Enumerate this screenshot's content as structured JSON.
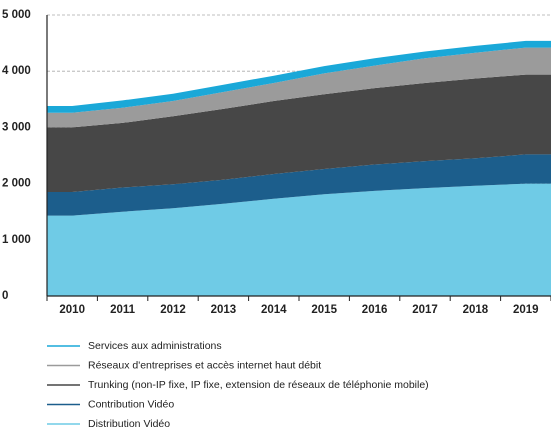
{
  "chart_data": {
    "type": "stacked_area",
    "categories": [
      "2010",
      "2011",
      "2012",
      "2013",
      "2014",
      "2015",
      "2016",
      "2017",
      "2018",
      "2019"
    ],
    "series": [
      {
        "name": "Distribution Vidéo",
        "color": "#6fcbe6",
        "values": [
          1430,
          1500,
          1560,
          1640,
          1730,
          1810,
          1870,
          1920,
          1960,
          2000
        ]
      },
      {
        "name": "Contribution Vidéo",
        "color": "#1c5e8c",
        "values": [
          420,
          430,
          430,
          430,
          440,
          450,
          470,
          480,
          490,
          520
        ]
      },
      {
        "name": "Trunking (non-IP fixe, IP fixe, extension de réseaux de téléphonie mobile)",
        "color": "#474747",
        "values": [
          1150,
          1150,
          1210,
          1260,
          1300,
          1330,
          1360,
          1390,
          1420,
          1420
        ]
      },
      {
        "name": "Réseaux d'entreprises et accès internet haut débit",
        "color": "#9b9b9b",
        "values": [
          260,
          270,
          270,
          300,
          320,
          370,
          400,
          440,
          460,
          480
        ]
      },
      {
        "name": "Services aux administrations",
        "color": "#1aa8d8",
        "values": [
          120,
          130,
          130,
          130,
          130,
          130,
          130,
          120,
          120,
          120
        ]
      }
    ],
    "ylim": [
      0,
      5000
    ],
    "yticks": [
      0,
      {
        "value": 1000,
        "label": "1 000"
      },
      {
        "value": 2000,
        "label": "2 000"
      },
      {
        "value": 3000,
        "label": "3 000"
      },
      {
        "value": 4000,
        "label": "4 000"
      },
      {
        "value": 5000,
        "label": "5 000"
      }
    ],
    "grid": true
  }
}
